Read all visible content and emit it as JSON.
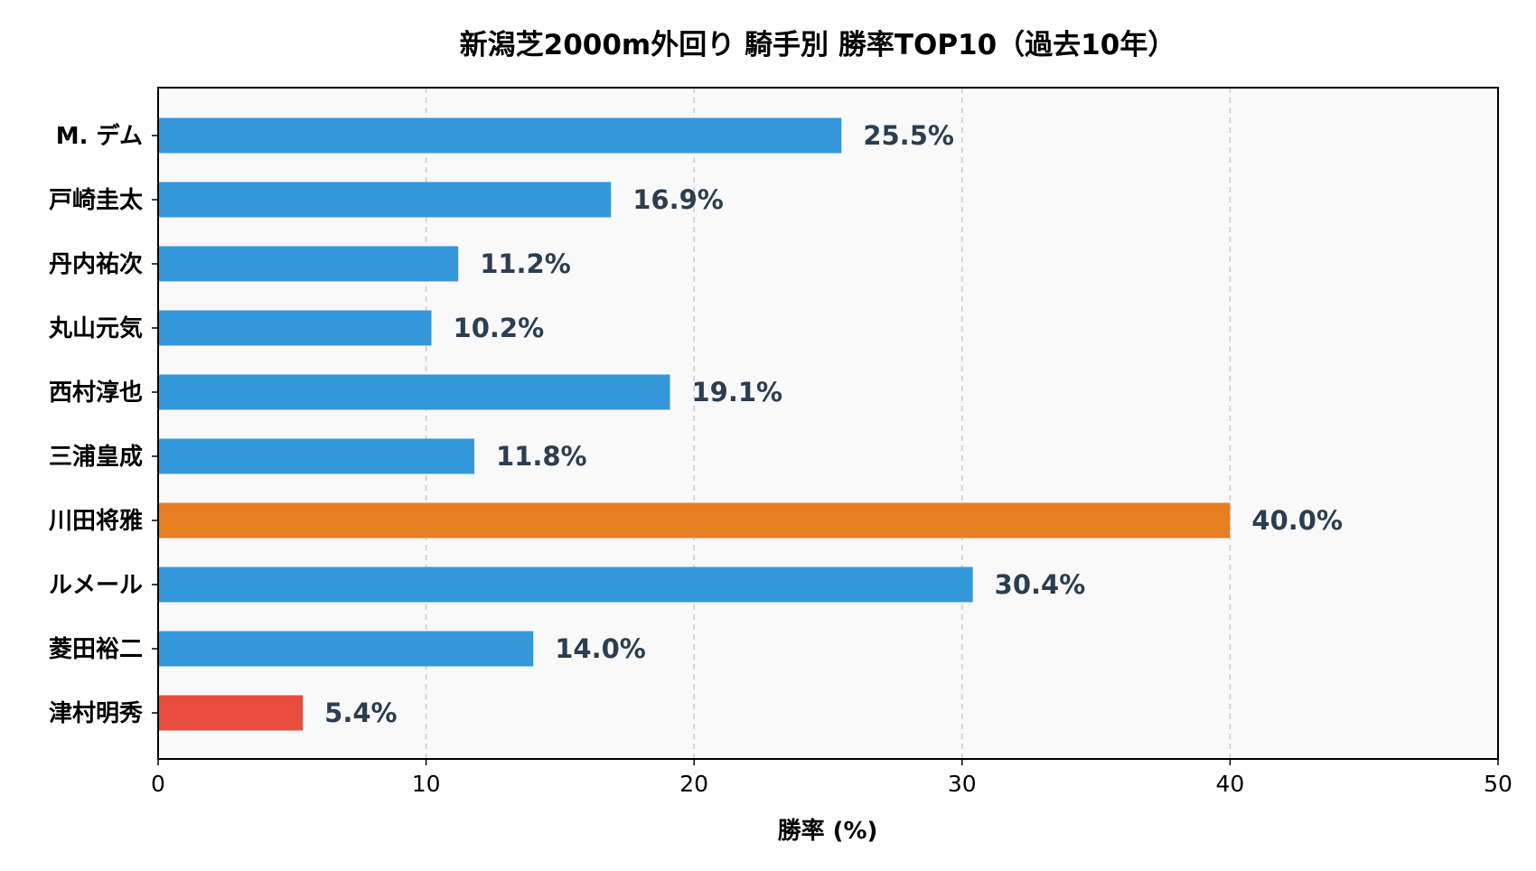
{
  "chart_data": {
    "type": "bar",
    "orientation": "horizontal",
    "title": "新潟芝2000m外回り 騎手別 勝率TOP10（過去10年）",
    "xlabel": "勝率 (%)",
    "ylabel": "",
    "xlim": [
      0,
      50
    ],
    "xticks": [
      0,
      10,
      20,
      30,
      40,
      50
    ],
    "grid": "x-dashed",
    "categories": [
      "M. デム",
      "戸崎圭太",
      "丹内祐次",
      "丸山元気",
      "西村淳也",
      "三浦皇成",
      "川田将雅",
      "ルメール",
      "菱田裕二",
      "津村明秀"
    ],
    "values": [
      25.5,
      16.9,
      11.2,
      10.2,
      19.1,
      11.8,
      40.0,
      30.4,
      14.0,
      5.4
    ],
    "value_labels": [
      "25.5%",
      "16.9%",
      "11.2%",
      "10.2%",
      "19.1%",
      "11.8%",
      "40.0%",
      "30.4%",
      "14.0%",
      "5.4%"
    ],
    "bar_colors": [
      "#3498db",
      "#3498db",
      "#3498db",
      "#3498db",
      "#3498db",
      "#3498db",
      "#e67e22",
      "#3498db",
      "#3498db",
      "#e74c3c"
    ]
  },
  "colors": {
    "default_bar": "#3498db",
    "highlight_max": "#e67e22",
    "highlight_min": "#e74c3c",
    "label_text": "#2c3e50",
    "plot_bg": "#f9f9f9"
  }
}
